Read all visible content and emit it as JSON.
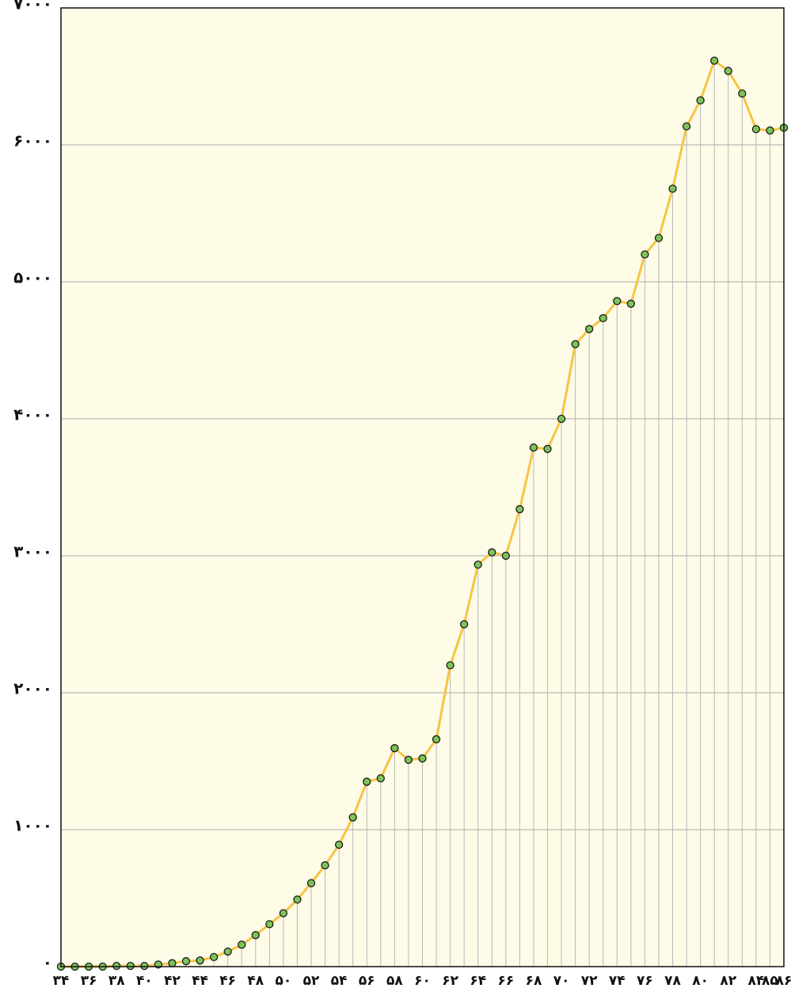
{
  "chart_data": {
    "type": "line",
    "categories": [
      "۳۴",
      null,
      "۳۶",
      null,
      "۳۸",
      null,
      "۴۰",
      null,
      "۴۲",
      null,
      "۴۴",
      null,
      "۴۶",
      null,
      "۴۸",
      null,
      "۵۰",
      null,
      "۵۲",
      null,
      "۵۴",
      null,
      "۵۶",
      null,
      "۵۸",
      null,
      "۶۰",
      null,
      "۶۲",
      null,
      "۶۴",
      null,
      "۶۶",
      null,
      "۶۸",
      null,
      "۷۰",
      null,
      "۷۲",
      null,
      "۷۴",
      null,
      "۷۶",
      null,
      "۷۸",
      null,
      "۸۰",
      null,
      "۸۲",
      null,
      "۸۴",
      "۸۵",
      "۸۶"
    ],
    "series": [
      {
        "color": "#f6c445",
        "marker_color": "#7cc35a",
        "values": [
          0,
          0,
          0,
          0,
          5,
          5,
          5,
          15,
          25,
          40,
          45,
          70,
          110,
          160,
          230,
          310,
          390,
          490,
          610,
          740,
          890,
          1090,
          1350,
          1375,
          1595,
          1510,
          1520,
          1660,
          2200,
          2500,
          2935,
          3025,
          3000,
          3340,
          3790,
          3780,
          4000,
          4545,
          4655,
          4735,
          4860,
          4840,
          5200,
          5320,
          5680,
          6135,
          6325,
          6615,
          6540,
          6375,
          6115,
          6105,
          6125
        ]
      }
    ],
    "ylim": [
      0,
      7000
    ],
    "yticks": [
      {
        "value": 0,
        "label": "۰"
      },
      {
        "value": 1000,
        "label": "۱۰۰۰"
      },
      {
        "value": 2000,
        "label": "۲۰۰۰"
      },
      {
        "value": 3000,
        "label": "۳۰۰۰"
      },
      {
        "value": 4000,
        "label": "۴۰۰۰"
      },
      {
        "value": 5000,
        "label": "۵۰۰۰"
      },
      {
        "value": 6000,
        "label": "۶۰۰۰"
      },
      {
        "value": 7000,
        "label": "۷۰۰۰"
      }
    ],
    "grid": true
  }
}
